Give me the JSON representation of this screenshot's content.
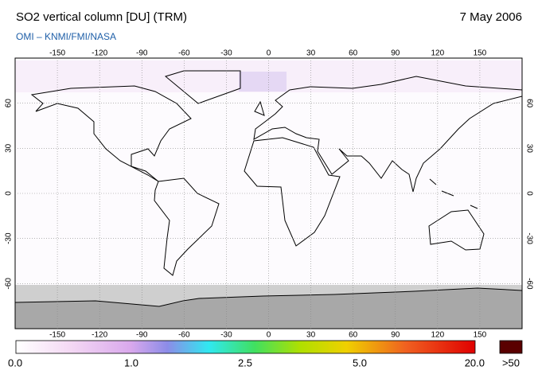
{
  "header": {
    "title": "SO2 vertical column [DU] (TRM)",
    "date": "7 May 2006",
    "subtitle": "OMI  –  KNMI/FMI/NASA"
  },
  "map": {
    "xlim": [
      -180,
      180
    ],
    "ylim": [
      -90,
      90
    ],
    "xticks": [
      -150,
      -120,
      -90,
      -60,
      -30,
      0,
      30,
      60,
      90,
      120,
      150
    ],
    "yticks": [
      60,
      30,
      0,
      -30,
      -60
    ]
  },
  "colorbar": {
    "labels": [
      "0.0",
      "1.0",
      "2.5",
      "5.0",
      "20.0"
    ],
    "over_label": ">50"
  }
}
